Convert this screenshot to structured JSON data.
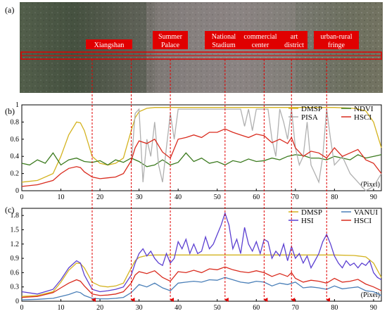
{
  "panels": {
    "a": "(a)",
    "b": "(b)",
    "c": "(c)"
  },
  "locations": [
    "Xiangshan",
    "Summer\nPalace",
    "National\nStadium",
    "commercial\ncenter",
    "art\ndistrict",
    "urban-rural\nfringe"
  ],
  "marker_pixels": [
    18,
    28,
    38,
    52,
    62,
    69,
    78
  ],
  "colors": {
    "DMSP": "#d4b320",
    "NDVI": "#3b7a1e",
    "PISA": "#b0b0b0",
    "HSCI": "#d92b1e",
    "VANUI": "#4a7fb8",
    "HSI": "#5b3fd1",
    "marker": "#e00000"
  },
  "chart_data": [
    {
      "type": "line",
      "panel": "b",
      "xlabel": "(Pixel)",
      "xlim": [
        0,
        92
      ],
      "ylim": [
        0,
        1
      ],
      "xticks": [
        0,
        10,
        20,
        30,
        40,
        50,
        60,
        70,
        80,
        90
      ],
      "yticks": [
        "0",
        "0.2",
        "0.4",
        "0.6",
        "0.8",
        "1"
      ],
      "legend": [
        "DMSP",
        "NDVI",
        "PISA",
        "HSCI"
      ],
      "series": [
        {
          "name": "DMSP",
          "color": "#d4b320",
          "x": [
            0,
            4,
            8,
            10,
            12,
            14,
            15,
            16,
            18,
            20,
            22,
            24,
            26,
            28,
            29,
            30,
            32,
            34,
            40,
            50,
            60,
            70,
            80,
            85,
            88,
            90,
            92
          ],
          "y": [
            0.1,
            0.12,
            0.2,
            0.4,
            0.65,
            0.8,
            0.79,
            0.7,
            0.4,
            0.32,
            0.3,
            0.32,
            0.38,
            0.7,
            0.85,
            0.92,
            0.96,
            0.97,
            0.97,
            0.97,
            0.97,
            0.97,
            0.97,
            0.96,
            0.93,
            0.8,
            0.5
          ]
        },
        {
          "name": "NDVI",
          "color": "#3b7a1e",
          "x": [
            0,
            2,
            4,
            6,
            8,
            10,
            12,
            14,
            16,
            18,
            20,
            22,
            24,
            26,
            28,
            30,
            32,
            34,
            36,
            38,
            40,
            42,
            44,
            46,
            48,
            50,
            52,
            54,
            56,
            58,
            60,
            62,
            64,
            66,
            68,
            70,
            72,
            74,
            76,
            78,
            80,
            82,
            84,
            86,
            88,
            90,
            92
          ],
          "y": [
            0.32,
            0.3,
            0.36,
            0.32,
            0.44,
            0.3,
            0.36,
            0.38,
            0.34,
            0.33,
            0.35,
            0.3,
            0.36,
            0.33,
            0.38,
            0.34,
            0.28,
            0.3,
            0.36,
            0.3,
            0.33,
            0.44,
            0.34,
            0.38,
            0.32,
            0.34,
            0.3,
            0.35,
            0.33,
            0.37,
            0.34,
            0.35,
            0.38,
            0.36,
            0.4,
            0.42,
            0.41,
            0.38,
            0.38,
            0.36,
            0.4,
            0.38,
            0.36,
            0.42,
            0.38,
            0.4,
            0.42
          ]
        },
        {
          "name": "PISA",
          "color": "#b0b0b0",
          "x": [
            28,
            29,
            30,
            31,
            32,
            33,
            34,
            35,
            36,
            37,
            38,
            39,
            40,
            42,
            44,
            46,
            48,
            50,
            52,
            54,
            56,
            57,
            58,
            59,
            60,
            62,
            63,
            64,
            65,
            66,
            67,
            68,
            69,
            70,
            71,
            72,
            73,
            74,
            75,
            76,
            77,
            78,
            79,
            80,
            82,
            84,
            86,
            88,
            90,
            92
          ],
          "y": [
            0.3,
            0.9,
            0.95,
            0.1,
            0.6,
            0.4,
            0.8,
            0.3,
            0.1,
            0.5,
            0.9,
            0.6,
            0.95,
            0.95,
            0.95,
            0.95,
            0.95,
            0.95,
            0.95,
            0.95,
            0.95,
            0.75,
            0.95,
            0.7,
            0.95,
            0.95,
            0.95,
            0.6,
            0.4,
            0.95,
            0.8,
            0.6,
            0.95,
            0.5,
            0.3,
            0.4,
            0.8,
            0.3,
            0.2,
            0.1,
            0.4,
            0.95,
            0.6,
            0.3,
            0.4,
            0.2,
            0.1,
            0.0,
            0.05,
            0.2
          ]
        },
        {
          "name": "HSCI",
          "color": "#d92b1e",
          "x": [
            0,
            4,
            8,
            10,
            12,
            14,
            15,
            16,
            18,
            20,
            22,
            24,
            26,
            28,
            29,
            30,
            32,
            34,
            36,
            38,
            40,
            42,
            44,
            46,
            48,
            50,
            52,
            54,
            56,
            58,
            60,
            62,
            64,
            66,
            68,
            69,
            70,
            72,
            74,
            76,
            78,
            80,
            82,
            84,
            86,
            88,
            90,
            92
          ],
          "y": [
            0.05,
            0.07,
            0.12,
            0.2,
            0.26,
            0.28,
            0.27,
            0.22,
            0.16,
            0.14,
            0.15,
            0.16,
            0.2,
            0.35,
            0.5,
            0.58,
            0.55,
            0.6,
            0.45,
            0.38,
            0.6,
            0.62,
            0.65,
            0.62,
            0.68,
            0.68,
            0.72,
            0.68,
            0.65,
            0.62,
            0.66,
            0.64,
            0.56,
            0.6,
            0.55,
            0.62,
            0.5,
            0.4,
            0.46,
            0.44,
            0.38,
            0.5,
            0.4,
            0.44,
            0.48,
            0.36,
            0.32,
            0.2
          ]
        }
      ]
    },
    {
      "type": "line",
      "panel": "c",
      "xlabel": "(Pixel)",
      "xlim": [
        0,
        92
      ],
      "ylim": [
        0,
        1.95
      ],
      "xticks": [
        0,
        10,
        20,
        30,
        40,
        50,
        60,
        70,
        80,
        90
      ],
      "yticks": [
        "0",
        "0.3",
        "0.6",
        "0.9",
        "1.2",
        "1.5",
        "1.8"
      ],
      "legend": [
        "DMSP",
        "VANUI",
        "HSI",
        "HSCI"
      ],
      "series": [
        {
          "name": "DMSP",
          "color": "#d4b320",
          "x": [
            0,
            4,
            8,
            10,
            12,
            14,
            15,
            16,
            18,
            20,
            22,
            24,
            26,
            28,
            29,
            30,
            32,
            34,
            40,
            50,
            60,
            70,
            80,
            85,
            88,
            90,
            92
          ],
          "y": [
            0.1,
            0.12,
            0.2,
            0.4,
            0.65,
            0.8,
            0.79,
            0.7,
            0.4,
            0.32,
            0.3,
            0.32,
            0.38,
            0.7,
            0.85,
            0.92,
            0.96,
            0.97,
            0.97,
            0.97,
            0.97,
            0.97,
            0.97,
            0.96,
            0.93,
            0.8,
            0.5
          ]
        },
        {
          "name": "VANUI",
          "color": "#4a7fb8",
          "x": [
            0,
            4,
            8,
            10,
            12,
            14,
            15,
            16,
            18,
            20,
            22,
            24,
            26,
            28,
            30,
            32,
            34,
            36,
            38,
            40,
            42,
            44,
            46,
            48,
            50,
            52,
            54,
            56,
            58,
            60,
            62,
            64,
            66,
            68,
            70,
            72,
            74,
            76,
            78,
            80,
            82,
            84,
            86,
            88,
            90,
            92
          ],
          "y": [
            0.03,
            0.04,
            0.06,
            0.1,
            0.14,
            0.2,
            0.18,
            0.12,
            0.06,
            0.05,
            0.05,
            0.06,
            0.08,
            0.18,
            0.35,
            0.3,
            0.38,
            0.28,
            0.22,
            0.38,
            0.4,
            0.42,
            0.4,
            0.45,
            0.44,
            0.5,
            0.45,
            0.4,
            0.38,
            0.42,
            0.4,
            0.32,
            0.38,
            0.35,
            0.4,
            0.28,
            0.3,
            0.28,
            0.25,
            0.32,
            0.26,
            0.28,
            0.3,
            0.22,
            0.2,
            0.12
          ]
        },
        {
          "name": "HSI",
          "color": "#5b3fd1",
          "x": [
            0,
            4,
            8,
            10,
            12,
            14,
            15,
            16,
            18,
            20,
            22,
            24,
            26,
            28,
            29,
            30,
            31,
            32,
            33,
            34,
            35,
            36,
            37,
            38,
            39,
            40,
            41,
            42,
            43,
            44,
            45,
            46,
            47,
            48,
            49,
            50,
            51,
            52,
            53,
            54,
            55,
            56,
            57,
            58,
            59,
            60,
            61,
            62,
            63,
            64,
            65,
            66,
            67,
            68,
            69,
            70,
            71,
            72,
            73,
            74,
            75,
            76,
            77,
            78,
            79,
            80,
            81,
            82,
            83,
            84,
            85,
            86,
            87,
            88,
            89,
            90,
            91,
            92
          ],
          "y": [
            0.2,
            0.15,
            0.25,
            0.45,
            0.7,
            0.85,
            0.8,
            0.55,
            0.25,
            0.2,
            0.22,
            0.25,
            0.3,
            0.55,
            0.8,
            1.0,
            1.1,
            0.95,
            1.05,
            0.9,
            0.8,
            0.75,
            1.0,
            0.8,
            0.9,
            1.25,
            1.1,
            1.3,
            1.0,
            1.2,
            1.0,
            1.05,
            1.35,
            1.1,
            1.2,
            1.4,
            1.6,
            1.85,
            1.6,
            1.1,
            1.3,
            1.0,
            1.55,
            1.2,
            1.05,
            1.25,
            1.0,
            1.3,
            1.25,
            0.9,
            1.05,
            0.95,
            1.2,
            0.85,
            1.15,
            0.9,
            1.0,
            0.8,
            0.95,
            0.7,
            0.85,
            1.0,
            1.25,
            1.4,
            1.2,
            0.95,
            0.8,
            0.7,
            0.85,
            0.75,
            0.8,
            0.7,
            0.8,
            0.75,
            0.85,
            0.6,
            0.5,
            0.45
          ]
        },
        {
          "name": "HSCI",
          "color": "#d92b1e",
          "x": [
            0,
            4,
            8,
            10,
            12,
            14,
            15,
            16,
            18,
            20,
            22,
            24,
            26,
            28,
            29,
            30,
            32,
            34,
            36,
            38,
            40,
            42,
            44,
            46,
            48,
            50,
            52,
            54,
            56,
            58,
            60,
            62,
            64,
            66,
            68,
            69,
            70,
            72,
            74,
            76,
            78,
            80,
            82,
            84,
            86,
            88,
            90,
            92
          ],
          "y": [
            0.08,
            0.1,
            0.18,
            0.28,
            0.38,
            0.45,
            0.42,
            0.32,
            0.15,
            0.12,
            0.13,
            0.15,
            0.2,
            0.38,
            0.55,
            0.62,
            0.58,
            0.64,
            0.5,
            0.42,
            0.62,
            0.6,
            0.65,
            0.6,
            0.68,
            0.66,
            0.72,
            0.66,
            0.62,
            0.6,
            0.64,
            0.6,
            0.52,
            0.58,
            0.52,
            0.6,
            0.48,
            0.4,
            0.44,
            0.42,
            0.38,
            0.48,
            0.4,
            0.42,
            0.46,
            0.36,
            0.3,
            0.22
          ]
        }
      ]
    }
  ]
}
